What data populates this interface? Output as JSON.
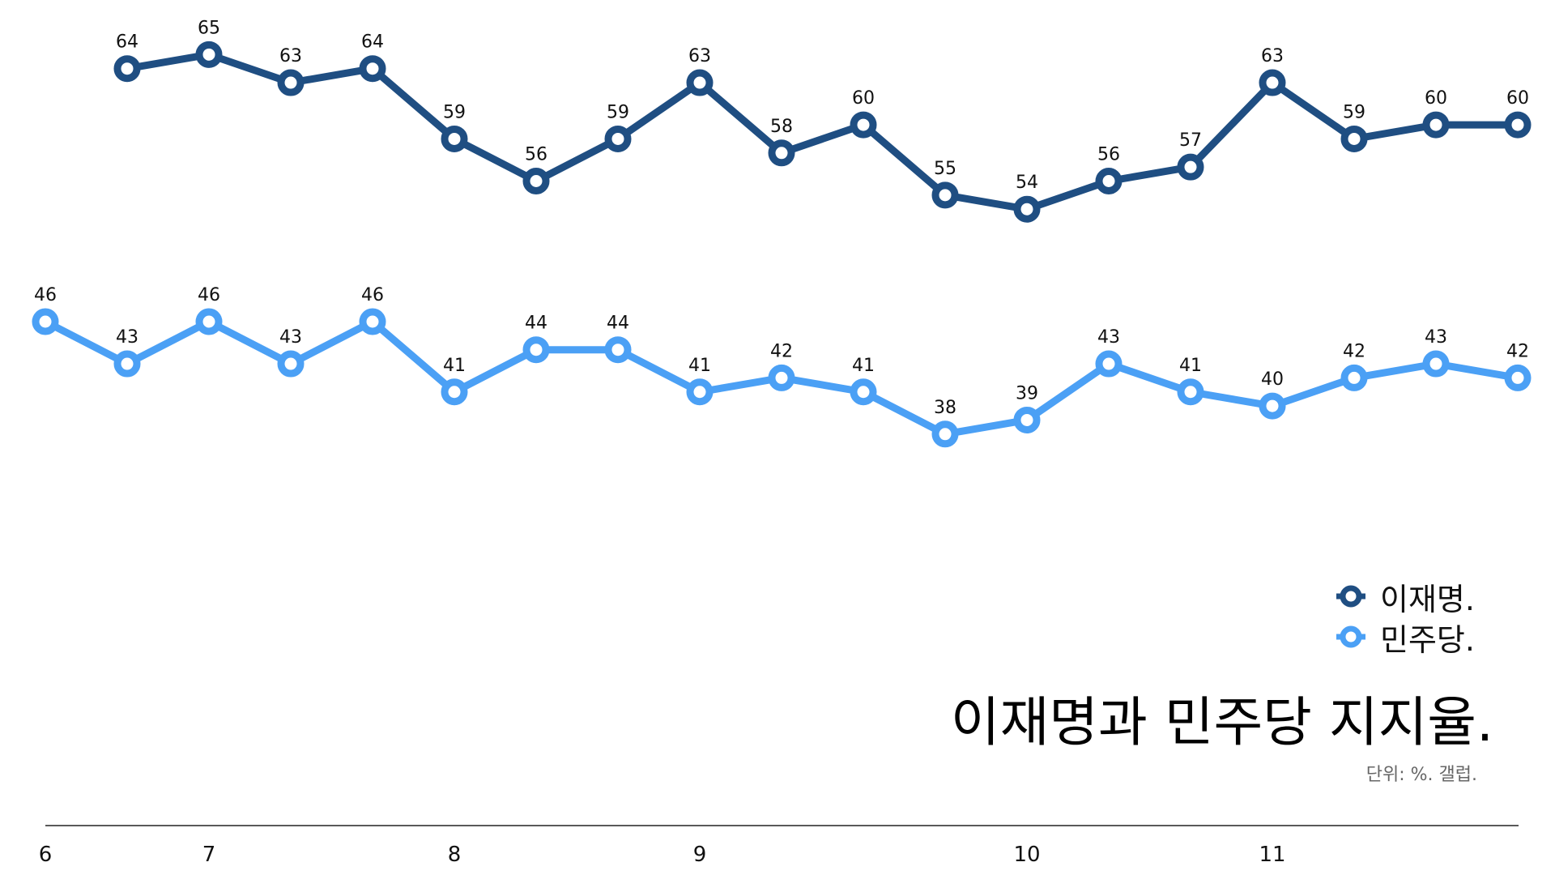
{
  "chart_data": {
    "type": "line",
    "title": "이재명과 민주당 지지율.",
    "note": "단위: %. 갤럽.",
    "x_ticks": [
      "6",
      "7",
      "8",
      "9",
      "10",
      "11"
    ],
    "legend": "bottom-right",
    "grid": false,
    "series": [
      {
        "name": "이재명.",
        "color": "#1f4e82",
        "start_index": 1,
        "values": [
          64,
          65,
          63,
          64,
          59,
          56,
          59,
          63,
          58,
          60,
          55,
          54,
          56,
          57,
          63,
          59,
          60,
          60
        ]
      },
      {
        "name": "민주당.",
        "color": "#4ba0f5",
        "start_index": 0,
        "values": [
          46,
          43,
          46,
          43,
          46,
          41,
          44,
          44,
          41,
          42,
          41,
          38,
          39,
          43,
          41,
          40,
          42,
          43,
          42
        ]
      }
    ]
  }
}
